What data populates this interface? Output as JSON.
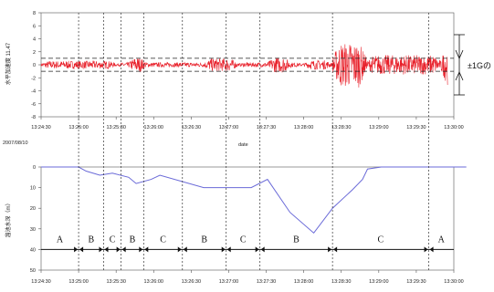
{
  "chart_data": [
    {
      "type": "line",
      "ylabel": "水平加速度 11.47",
      "ylim": [
        -8,
        8
      ],
      "yticks": [
        8,
        6,
        4,
        2,
        0,
        -2,
        -4,
        -6,
        -8
      ],
      "xticks": [
        "13:24:30",
        "13:25:00",
        "13:25:30",
        "13:26:00",
        "13:26:30",
        "13:27:00",
        "13:27:30",
        "13:28:00",
        "13:28:30",
        "13:29:00",
        "13:29:30",
        "13:30:00"
      ],
      "xlabel": "date",
      "date_label": "2007/08/10",
      "threshold": 1,
      "threshold_label": "±1Gの",
      "color": "#e8202a",
      "bursts": [
        {
          "start": 0.0,
          "end": 60.0,
          "amp": 0.6
        },
        {
          "start": 60.0,
          "end": 157.0,
          "amp": 0.35
        },
        {
          "start": 70.0,
          "end": 84.0,
          "amp": 1.15
        },
        {
          "start": 130.0,
          "end": 157.0,
          "amp": 1.0
        },
        {
          "start": 157.0,
          "end": 210.0,
          "amp": 0.35
        },
        {
          "start": 181.0,
          "end": 200.0,
          "amp": 1.2
        },
        {
          "start": 210.0,
          "end": 233.0,
          "amp": 0.7
        },
        {
          "start": 233.0,
          "end": 260.0,
          "amp": 3.5
        },
        {
          "start": 260.0,
          "end": 320.0,
          "amp": 1.5
        },
        {
          "start": 320.0,
          "end": 340.0,
          "amp": 3.5
        },
        {
          "start": 340.0,
          "end": 420.0,
          "amp": 1.0
        }
      ]
    },
    {
      "type": "line",
      "ylabel": "溜池水深（m）",
      "ylim": [
        0,
        50
      ],
      "yticks": [
        0,
        10,
        20,
        30,
        40,
        50
      ],
      "xticks": [
        "13:24:30",
        "13:25:00",
        "13:25:30",
        "13:26:00",
        "13:26:30",
        "13:27:00",
        "13:27:30",
        "13:28:00",
        "13:28:30",
        "13:29:00",
        "13:29:30",
        "13:30:00"
      ],
      "color": "#6a6ad8",
      "x": [
        0,
        30,
        36,
        47,
        57,
        70,
        76,
        88,
        95,
        130,
        168,
        181,
        199,
        218,
        233,
        249,
        257,
        261,
        272,
        290,
        299,
        310,
        340
      ],
      "values": [
        0,
        0,
        2,
        4,
        3,
        5,
        8,
        6,
        4,
        10,
        10,
        6,
        22,
        32,
        20,
        11,
        6,
        1,
        0,
        0,
        0,
        0,
        0
      ],
      "segments": [
        {
          "label": "A",
          "start": -10,
          "end": 30
        },
        {
          "label": "B",
          "start": 30,
          "end": 50
        },
        {
          "label": "C",
          "start": 50,
          "end": 64
        },
        {
          "label": "B",
          "start": 64,
          "end": 82
        },
        {
          "label": "C",
          "start": 82,
          "end": 113
        },
        {
          "label": "B",
          "start": 113,
          "end": 148
        },
        {
          "label": "C",
          "start": 148,
          "end": 175
        },
        {
          "label": "B",
          "start": 175,
          "end": 233
        },
        {
          "label": "C",
          "start": 233,
          "end": 310
        },
        {
          "label": "A",
          "start": 310,
          "end": 375
        }
      ],
      "segment_level": 40
    }
  ]
}
